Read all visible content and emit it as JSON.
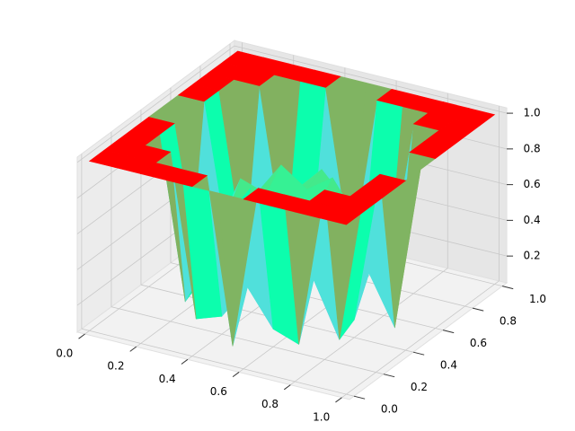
{
  "chart_data": {
    "type": "surface",
    "colormap": "rainbow",
    "x": [
      0,
      0.1,
      0.2,
      0.3,
      0.4,
      0.5,
      0.6,
      0.7,
      0.8,
      0.9,
      1
    ],
    "y": [
      0,
      0.1,
      0.2,
      0.3,
      0.4,
      0.5,
      0.6,
      0.7,
      0.8,
      0.9,
      1
    ],
    "z": [
      [
        1,
        1,
        1,
        1,
        1,
        1,
        1,
        1,
        1,
        1,
        1
      ],
      [
        1,
        1,
        1,
        1,
        1,
        0.08,
        1,
        1,
        1,
        1,
        1
      ],
      [
        1,
        1,
        1,
        0.1,
        0.15,
        0.35,
        0.15,
        0.1,
        1,
        1,
        1
      ],
      [
        1,
        1,
        0.1,
        0.4,
        0.55,
        0.7,
        0.55,
        0.4,
        0.1,
        1,
        1
      ],
      [
        1,
        1,
        0.15,
        0.55,
        0.75,
        0.65,
        0.75,
        0.55,
        0.15,
        1,
        1
      ],
      [
        1,
        0.08,
        0.35,
        0.7,
        0.65,
        0.5,
        0.65,
        0.7,
        0.35,
        0.08,
        1
      ],
      [
        1,
        1,
        0.15,
        0.55,
        0.75,
        0.65,
        0.75,
        0.55,
        0.15,
        1,
        1
      ],
      [
        1,
        1,
        0.1,
        0.4,
        0.55,
        0.7,
        0.55,
        0.4,
        0.1,
        1,
        1
      ],
      [
        1,
        1,
        1,
        0.1,
        0.15,
        0.35,
        0.15,
        0.1,
        1,
        1,
        1
      ],
      [
        1,
        1,
        1,
        1,
        1,
        0.08,
        1,
        1,
        1,
        1,
        1
      ],
      [
        1,
        1,
        1,
        1,
        1,
        1,
        1,
        1,
        1,
        1,
        1
      ]
    ],
    "xlim": [
      -0.03,
      1.03
    ],
    "ylim": [
      -0.03,
      1.03
    ],
    "zlim": [
      0.05,
      1.03
    ],
    "xticks": [
      {
        "value": 0,
        "label": "0.0"
      },
      0.2,
      0.4,
      0.6,
      0.8,
      {
        "value": 1,
        "label": "1.0"
      }
    ],
    "yticks": [
      {
        "value": 0,
        "label": "0.0"
      },
      0.2,
      0.4,
      0.6,
      0.8,
      {
        "value": 1,
        "label": "1.0"
      }
    ],
    "zticks": [
      0.2,
      0.4,
      0.6,
      0.8,
      {
        "value": 1,
        "label": "1.0"
      }
    ],
    "grid": true
  }
}
